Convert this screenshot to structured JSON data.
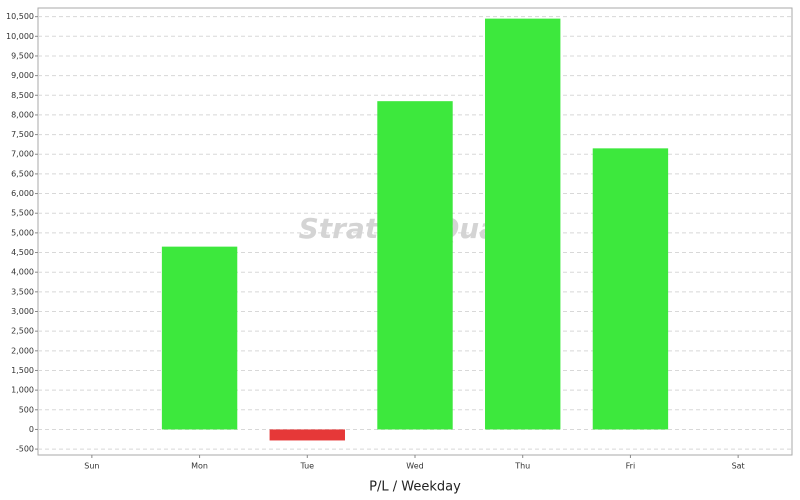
{
  "chart_data": {
    "type": "bar",
    "watermark": "StrategyQuant",
    "x_label": "P/L / Weekday",
    "categories": [
      "Sun",
      "Mon",
      "Tue",
      "Wed",
      "Thu",
      "Fri",
      "Sat"
    ],
    "values": [
      null,
      4650,
      -280,
      8350,
      10450,
      7150,
      null
    ],
    "positive_color": "#3de83d",
    "negative_color": "#e63838",
    "ylim": [
      -650,
      10720
    ],
    "yticks": [
      -500,
      0,
      500,
      {
        "value": 1000,
        "label": "1,000"
      },
      {
        "value": 1500,
        "label": "1,500"
      },
      {
        "value": 2000,
        "label": "2,000"
      },
      {
        "value": 2500,
        "label": "2,500"
      },
      {
        "value": 3000,
        "label": "3,000"
      },
      {
        "value": 3500,
        "label": "3,500"
      },
      {
        "value": 4000,
        "label": "4,000"
      },
      {
        "value": 4500,
        "label": "4,500"
      },
      {
        "value": 5000,
        "label": "5,000"
      },
      {
        "value": 5500,
        "label": "5,500"
      },
      {
        "value": 6000,
        "label": "6,000"
      },
      {
        "value": 6500,
        "label": "6,500"
      },
      {
        "value": 7000,
        "label": "7,000"
      },
      {
        "value": 7500,
        "label": "7,500"
      },
      {
        "value": 8000,
        "label": "8,000"
      },
      {
        "value": 8500,
        "label": "8,500"
      },
      {
        "value": 9000,
        "label": "9,000"
      },
      {
        "value": 9500,
        "label": "9,500"
      },
      {
        "value": 10000,
        "label": "10,000"
      },
      {
        "value": 10500,
        "label": "10,500"
      }
    ],
    "grid": true
  }
}
